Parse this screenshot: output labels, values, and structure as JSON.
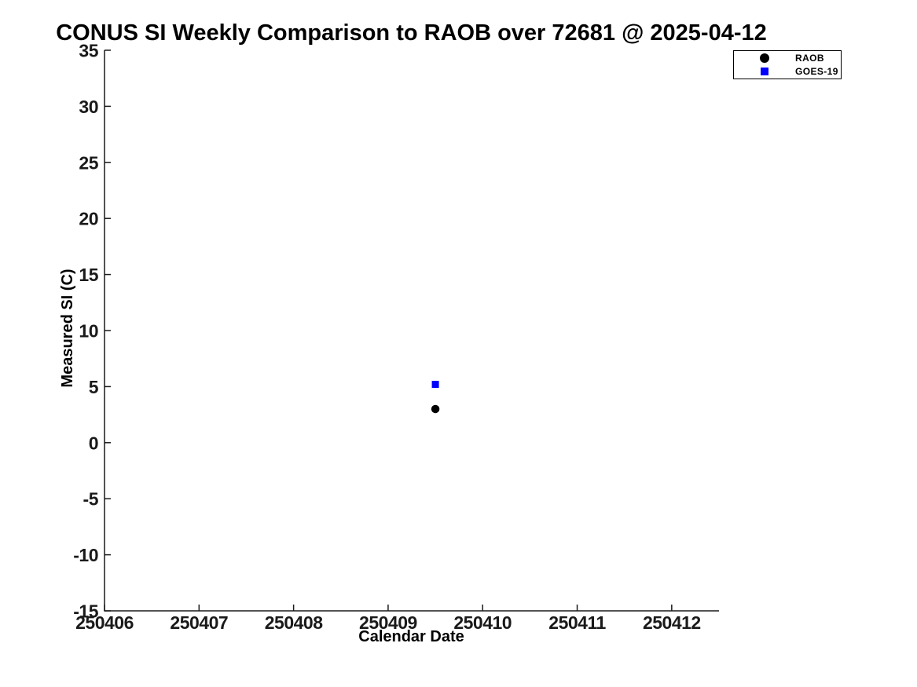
{
  "chart_data": {
    "type": "scatter",
    "title": "CONUS SI Weekly Comparison to RAOB over 72681 @ 2025-04-12",
    "xlabel": "Calendar Date",
    "ylabel": "Measured SI (C)",
    "xlim": [
      250406,
      250412.5
    ],
    "ylim": [
      -15,
      35
    ],
    "xticks": [
      250406,
      250407,
      250408,
      250409,
      250410,
      250411,
      250412
    ],
    "yticks": [
      -15,
      -10,
      -5,
      0,
      5,
      10,
      15,
      20,
      25,
      30,
      35
    ],
    "grid": false,
    "axis_color": "#1a1a1a",
    "background_color": "#ffffff",
    "legend_position": "top-right",
    "series": [
      {
        "name": "RAOB",
        "marker": "circle",
        "color": "#000000",
        "marker_size": 10.5,
        "x": [
          250409.5
        ],
        "y": [
          3.0
        ]
      },
      {
        "name": "GOES-19",
        "marker": "square",
        "color": "#0000ff",
        "marker_size": 9,
        "x": [
          250409.5
        ],
        "y": [
          5.2
        ]
      }
    ]
  }
}
